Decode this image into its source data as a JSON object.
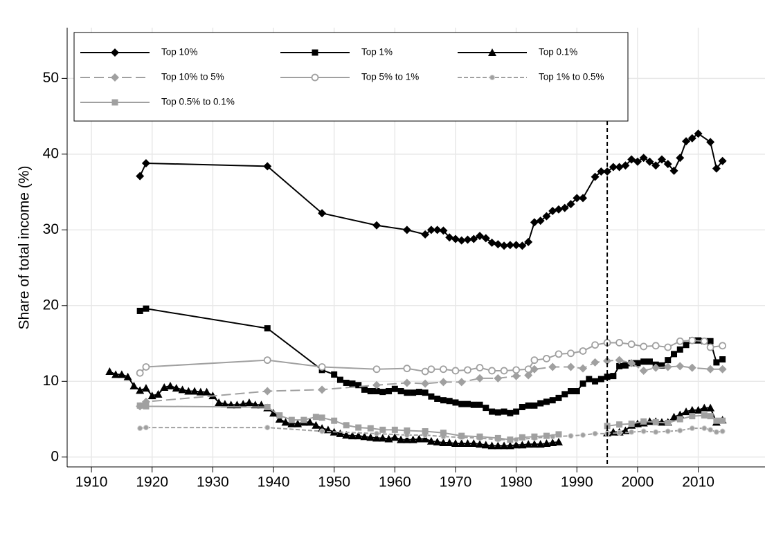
{
  "chart_data": {
    "type": "line",
    "y_label": "Share of total income (%)",
    "xlim": [
      1906,
      2021
    ],
    "ylim": [
      -1.3,
      56.7
    ],
    "xticks": [
      1910,
      1920,
      1930,
      1940,
      1950,
      1960,
      1970,
      1980,
      1990,
      2000,
      2010
    ],
    "yticks": [
      0,
      10,
      20,
      30,
      40,
      50
    ],
    "grid": true,
    "vline": 1995,
    "legend": "top-left",
    "series": [
      {
        "name": "Top 10%",
        "color": "#000000",
        "marker": "diamond",
        "style": "solid",
        "x": [
          1918,
          1919,
          1939,
          1948,
          1957,
          1962,
          1965,
          1966,
          1967,
          1968,
          1969,
          1970,
          1971,
          1972,
          1973,
          1974,
          1975,
          1976,
          1977,
          1978,
          1979,
          1980,
          1981,
          1982,
          1983,
          1984,
          1985,
          1986,
          1987,
          1988,
          1989,
          1990,
          1991,
          1993,
          1994,
          1995,
          1996,
          1997,
          1998,
          1999,
          2000,
          2001,
          2002,
          2003,
          2004,
          2005,
          2006,
          2007,
          2008,
          2009,
          2010,
          2012,
          2013,
          2014
        ],
        "values": [
          37.1,
          38.8,
          38.4,
          32.2,
          30.6,
          30.0,
          29.4,
          30.0,
          30.0,
          29.9,
          29.0,
          28.8,
          28.6,
          28.7,
          28.8,
          29.2,
          28.9,
          28.3,
          28.1,
          27.9,
          28.0,
          28.0,
          27.9,
          28.4,
          31.0,
          31.2,
          31.8,
          32.5,
          32.7,
          32.9,
          33.4,
          34.2,
          34.2,
          37.0,
          37.7,
          37.7,
          38.3,
          38.3,
          38.5,
          39.3,
          39.0,
          39.5,
          39.0,
          38.5,
          39.3,
          38.7,
          37.8,
          39.5,
          41.7,
          42.1,
          42.7,
          41.6,
          38.1,
          39.1
        ]
      },
      {
        "name": "Top 1%",
        "color": "#000000",
        "marker": "square",
        "style": "solid",
        "x": [
          1918,
          1919,
          1939,
          1948,
          1950,
          1951,
          1952,
          1953,
          1954,
          1955,
          1956,
          1957,
          1958,
          1959,
          1960,
          1961,
          1962,
          1963,
          1964,
          1965,
          1966,
          1967,
          1968,
          1969,
          1970,
          1971,
          1972,
          1973,
          1974,
          1975,
          1976,
          1977,
          1978,
          1979,
          1980,
          1981,
          1982,
          1983,
          1984,
          1985,
          1986,
          1987,
          1988,
          1989,
          1990,
          1991,
          1992,
          1993,
          1994,
          1995,
          1996,
          1997,
          1998,
          1999,
          2000,
          2001,
          2002,
          2003,
          2004,
          2005,
          2006,
          2007,
          2008,
          2009,
          2010,
          2011,
          2012,
          2013,
          2014
        ],
        "values": [
          19.3,
          19.6,
          17.0,
          11.5,
          10.9,
          10.2,
          9.8,
          9.7,
          9.5,
          8.9,
          8.7,
          8.7,
          8.6,
          8.7,
          9.0,
          8.7,
          8.5,
          8.5,
          8.6,
          8.5,
          8.0,
          7.7,
          7.5,
          7.4,
          7.2,
          7.0,
          7.0,
          6.9,
          6.9,
          6.5,
          6.0,
          5.9,
          6.0,
          5.8,
          6.0,
          6.6,
          6.8,
          6.8,
          7.1,
          7.3,
          7.5,
          7.8,
          8.3,
          8.7,
          8.7,
          9.7,
          10.3,
          10.0,
          10.3,
          10.6,
          10.7,
          12.0,
          12.1,
          12.4,
          12.4,
          12.6,
          12.6,
          12.2,
          12.1,
          12.8,
          13.6,
          14.2,
          14.8,
          15.4,
          15.4,
          15.3,
          15.3,
          12.5,
          12.9
        ]
      },
      {
        "name": "Top 0.1%",
        "color": "#000000",
        "marker": "triangle",
        "style": "solid",
        "x": [
          1913,
          1914,
          1915,
          1916,
          1917,
          1918,
          1919,
          1920,
          1921,
          1922,
          1923,
          1924,
          1925,
          1926,
          1927,
          1928,
          1929,
          1930,
          1931,
          1932,
          1933,
          1934,
          1935,
          1936,
          1937,
          1938,
          1939,
          1940,
          1941,
          1942,
          1943,
          1944,
          1945,
          1946,
          1947,
          1948,
          1949,
          1950,
          1951,
          1952,
          1953,
          1954,
          1955,
          1956,
          1957,
          1958,
          1959,
          1960,
          1961,
          1962,
          1963,
          1964,
          1965,
          1966,
          1967,
          1968,
          1969,
          1970,
          1971,
          1972,
          1973,
          1974,
          1975,
          1976,
          1977,
          1978,
          1979,
          1980,
          1981,
          1982,
          1983,
          1984,
          1985,
          1986,
          1987,
          1990,
          1995,
          1996,
          1997,
          1998,
          1999,
          2000,
          2001,
          2002,
          2003,
          2004,
          2005,
          2006,
          2007,
          2008,
          2009,
          2010,
          2011,
          2012,
          2013,
          2014
        ],
        "values": [
          11.3,
          10.9,
          10.9,
          10.6,
          9.4,
          8.8,
          9.1,
          8.1,
          8.3,
          9.2,
          9.4,
          9.1,
          8.9,
          8.7,
          8.7,
          8.6,
          8.6,
          8.1,
          7.2,
          7.0,
          6.9,
          6.9,
          7.0,
          7.2,
          6.9,
          6.9,
          6.5,
          5.8,
          5.0,
          4.6,
          4.4,
          4.4,
          4.6,
          4.6,
          4.2,
          3.8,
          3.6,
          3.3,
          3.1,
          2.9,
          2.8,
          2.8,
          2.7,
          2.6,
          2.5,
          2.5,
          2.4,
          2.6,
          2.3,
          2.3,
          2.3,
          2.4,
          2.4,
          2.1,
          2.0,
          1.9,
          1.9,
          1.8,
          1.8,
          1.8,
          1.8,
          1.7,
          1.6,
          1.5,
          1.5,
          1.5,
          1.5,
          1.6,
          1.6,
          1.7,
          1.7,
          1.7,
          1.8,
          1.9,
          2.0,
          null,
          3.2,
          3.3,
          3.3,
          3.5,
          4.2,
          4.4,
          4.5,
          4.7,
          4.7,
          4.6,
          4.6,
          5.3,
          5.6,
          6.0,
          6.2,
          6.2,
          6.5,
          6.5,
          4.6,
          4.9
        ]
      },
      {
        "name": "Top 10% to 5%",
        "color": "#a0a0a0",
        "marker": "diamond",
        "style": "longdash",
        "x": [
          1918,
          1919,
          1939,
          1948,
          1957,
          1962,
          1965,
          1968,
          1971,
          1974,
          1977,
          1980,
          1982,
          1983,
          1986,
          1989,
          1991,
          1993,
          1995,
          1997,
          1999,
          2001,
          2003,
          2005,
          2007,
          2009,
          2012,
          2014
        ],
        "values": [
          6.7,
          7.3,
          8.7,
          8.9,
          9.5,
          9.8,
          9.7,
          9.9,
          9.9,
          10.4,
          10.4,
          10.7,
          10.8,
          11.6,
          11.9,
          11.9,
          11.7,
          12.5,
          12.7,
          12.8,
          12.4,
          11.4,
          11.8,
          11.9,
          12.0,
          11.8,
          11.6,
          11.6
        ]
      },
      {
        "name": "Top 5% to 1%",
        "color": "#a0a0a0",
        "marker": "circle",
        "style": "solid",
        "x": [
          1918,
          1919,
          1939,
          1948,
          1957,
          1962,
          1965,
          1966,
          1968,
          1970,
          1972,
          1974,
          1976,
          1978,
          1980,
          1982,
          1983,
          1985,
          1987,
          1989,
          1991,
          1993,
          1995,
          1997,
          1999,
          2001,
          2003,
          2005,
          2007,
          2009,
          2011,
          2012,
          2014
        ],
        "values": [
          11.1,
          11.9,
          12.8,
          11.9,
          11.6,
          11.7,
          11.3,
          11.6,
          11.6,
          11.4,
          11.5,
          11.8,
          11.4,
          11.4,
          11.5,
          11.6,
          12.8,
          13.0,
          13.6,
          13.7,
          14.0,
          14.8,
          15.1,
          15.1,
          14.9,
          14.6,
          14.7,
          14.5,
          15.3,
          15.4,
          15.3,
          14.5,
          14.7
        ]
      },
      {
        "name": "Top 1% to 0.5%",
        "color": "#a0a0a0",
        "marker": "dot",
        "style": "shortdash",
        "x": [
          1918,
          1919,
          1939,
          1948,
          1957,
          1962,
          1965,
          1968,
          1971,
          1974,
          1977,
          1980,
          1983,
          1986,
          1989,
          1991,
          1993,
          1995,
          1997,
          1999,
          2001,
          2003,
          2005,
          2007,
          2009,
          2011,
          2012,
          2013,
          2014
        ],
        "values": [
          3.8,
          3.9,
          3.9,
          3.4,
          3.1,
          2.9,
          2.9,
          2.7,
          2.6,
          2.5,
          2.3,
          2.3,
          2.5,
          2.7,
          2.8,
          2.9,
          3.1,
          3.1,
          3.2,
          3.3,
          3.4,
          3.3,
          3.4,
          3.5,
          3.8,
          3.8,
          3.6,
          3.3,
          3.4
        ]
      },
      {
        "name": "Top 0.5% to 0.1%",
        "color": "#a0a0a0",
        "marker": "square",
        "style": "solid",
        "x": [
          1918,
          1919,
          1939,
          1941,
          1943,
          1945,
          1947,
          1948,
          1950,
          1952,
          1954,
          1956,
          1958,
          1960,
          1962,
          1965,
          1968,
          1971,
          1974,
          1977,
          1979,
          1981,
          1983,
          1985,
          1987,
          1990,
          1995,
          1997,
          1999,
          2001,
          2003,
          2005,
          2007,
          2009,
          2011,
          2012,
          2013,
          2014
        ],
        "values": [
          6.8,
          6.7,
          6.6,
          5.5,
          4.9,
          4.9,
          5.3,
          5.2,
          4.8,
          4.2,
          3.9,
          3.8,
          3.6,
          3.6,
          3.5,
          3.4,
          3.2,
          2.8,
          2.7,
          2.5,
          2.3,
          2.6,
          2.7,
          2.8,
          3.0,
          null,
          4.1,
          4.3,
          4.4,
          4.7,
          4.6,
          4.5,
          5.0,
          5.4,
          5.5,
          5.4,
          4.8,
          4.8
        ]
      }
    ]
  }
}
